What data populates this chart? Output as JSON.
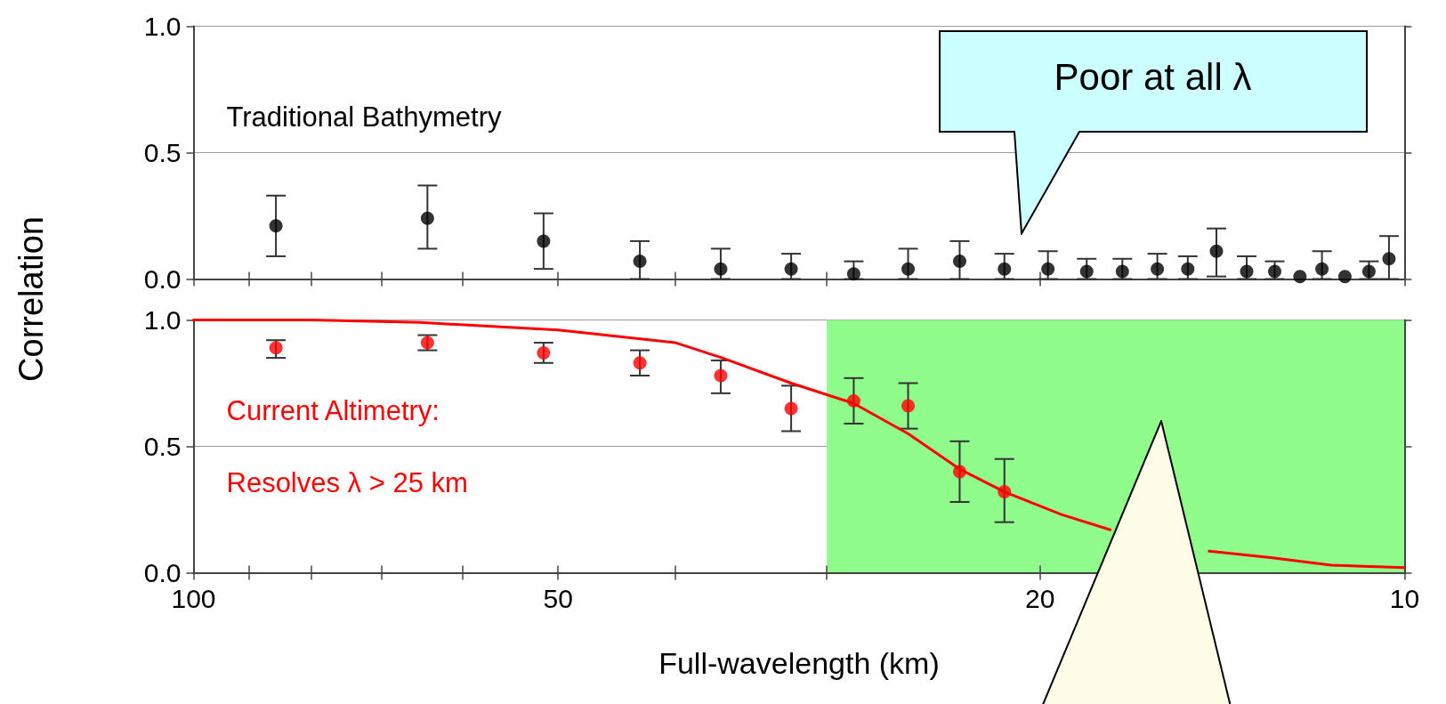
{
  "chart_data": [
    {
      "type": "scatter",
      "ylabel": "Correlation",
      "marker": "circle",
      "grid": "y",
      "log": "x",
      "tick_labels": "y",
      "xlim": [
        100,
        10
      ],
      "ylim": [
        0,
        1
      ],
      "xticks": [
        100,
        {
          "value": 90,
          "label": null
        },
        {
          "value": 80,
          "label": null
        },
        {
          "value": 70,
          "label": null
        },
        {
          "value": 60,
          "label": null
        },
        50,
        {
          "value": 40,
          "label": null
        },
        {
          "value": 30,
          "label": null
        },
        20,
        10
      ],
      "yticks": [
        {
          "value": 0,
          "label": "0.0"
        },
        {
          "value": 0.5,
          "label": "0.5"
        },
        {
          "value": 1,
          "label": "1.0"
        }
      ],
      "annotations": [
        "Traditional Bathymetry",
        "Poor at all λ"
      ],
      "series": [
        {
          "color": "#000000",
          "x": [
            85.5,
            64.1,
            51.4,
            42.8,
            36.7,
            32.1,
            28.5,
            25.7,
            23.3,
            21.4,
            19.7,
            18.3,
            17.1,
            16.0,
            15.1,
            14.3,
            13.5,
            12.8,
            12.2,
            11.7,
            11.2,
            10.7,
            10.3
          ],
          "values": [
            0.21,
            0.24,
            0.15,
            0.07,
            0.04,
            0.04,
            0.02,
            0.04,
            0.07,
            0.04,
            0.04,
            0.03,
            0.03,
            0.04,
            0.04,
            0.11,
            0.03,
            0.03,
            0.01,
            0.04,
            0.01,
            0.03,
            0.08
          ],
          "errors": [
            [
              0.09,
              0.33
            ],
            [
              0.12,
              0.37
            ],
            [
              0.04,
              0.26
            ],
            [
              0,
              0.15
            ],
            [
              0,
              0.12
            ],
            [
              0,
              0.1
            ],
            [
              0,
              0.07
            ],
            [
              0,
              0.12
            ],
            [
              0,
              0.15
            ],
            [
              0,
              0.1
            ],
            [
              0,
              0.11
            ],
            [
              0,
              0.08
            ],
            [
              0,
              0.08
            ],
            [
              0,
              0.1
            ],
            [
              0,
              0.09
            ],
            [
              0.01,
              0.2
            ],
            [
              0,
              0.09
            ],
            [
              0,
              0.07
            ],
            null,
            [
              0,
              0.11
            ],
            null,
            [
              0,
              0.07
            ],
            [
              0,
              0.17
            ]
          ]
        }
      ]
    },
    {
      "type": "scatter",
      "xlabel": "Full-wavelength (km)",
      "marker": "circle",
      "grid": "y",
      "log": "x",
      "xlim": [
        100,
        10
      ],
      "ylim": [
        0,
        1
      ],
      "xticks": [
        100,
        {
          "value": 90,
          "label": null
        },
        {
          "value": 80,
          "label": null
        },
        {
          "value": 70,
          "label": null
        },
        {
          "value": 60,
          "label": null
        },
        50,
        {
          "value": 40,
          "label": null
        },
        {
          "value": 30,
          "label": null
        },
        20,
        10
      ],
      "yticks": [
        {
          "value": 0,
          "label": "0.0"
        },
        {
          "value": 0.5,
          "label": "0.5"
        },
        {
          "value": 1,
          "label": "1.0"
        }
      ],
      "annotations": [
        "Current Altimetry:",
        "Resolves λ > 25 km"
      ],
      "bands": [
        {
          "axis": "x",
          "from": 30,
          "to": 10,
          "color": "#8ffc8c"
        }
      ],
      "series": [
        {
          "color": "#ff0000",
          "x": [
            85.5,
            64.1,
            51.4,
            42.8,
            36.7,
            32.1,
            28.5,
            25.7,
            23.3,
            21.4
          ],
          "values": [
            0.89,
            0.91,
            0.87,
            0.83,
            0.78,
            0.65,
            0.68,
            0.66,
            0.4,
            0.32
          ],
          "errors": [
            [
              0.85,
              0.92
            ],
            [
              0.88,
              0.94
            ],
            [
              0.83,
              0.91
            ],
            [
              0.78,
              0.88
            ],
            [
              0.71,
              0.84
            ],
            [
              0.56,
              0.74
            ],
            [
              0.59,
              0.77
            ],
            [
              0.57,
              0.75
            ],
            [
              0.28,
              0.52
            ],
            [
              0.2,
              0.45
            ]
          ]
        },
        {
          "type": "line",
          "marker": "none",
          "color": "#ff0000",
          "x": [
            100,
            80,
            65,
            50,
            40,
            36.6,
            32.1,
            28.5,
            25.7,
            23.3,
            21.4,
            19.2,
            17.5,
            15.1,
            14.5,
            12.9,
            11.5,
            10
          ],
          "values": [
            1.0,
            1.0,
            0.99,
            0.96,
            0.91,
            0.85,
            0.75,
            0.67,
            0.55,
            0.41,
            0.32,
            0.23,
            0.17,
            null,
            0.085,
            0.06,
            0.03,
            0.02
          ]
        }
      ]
    }
  ]
}
